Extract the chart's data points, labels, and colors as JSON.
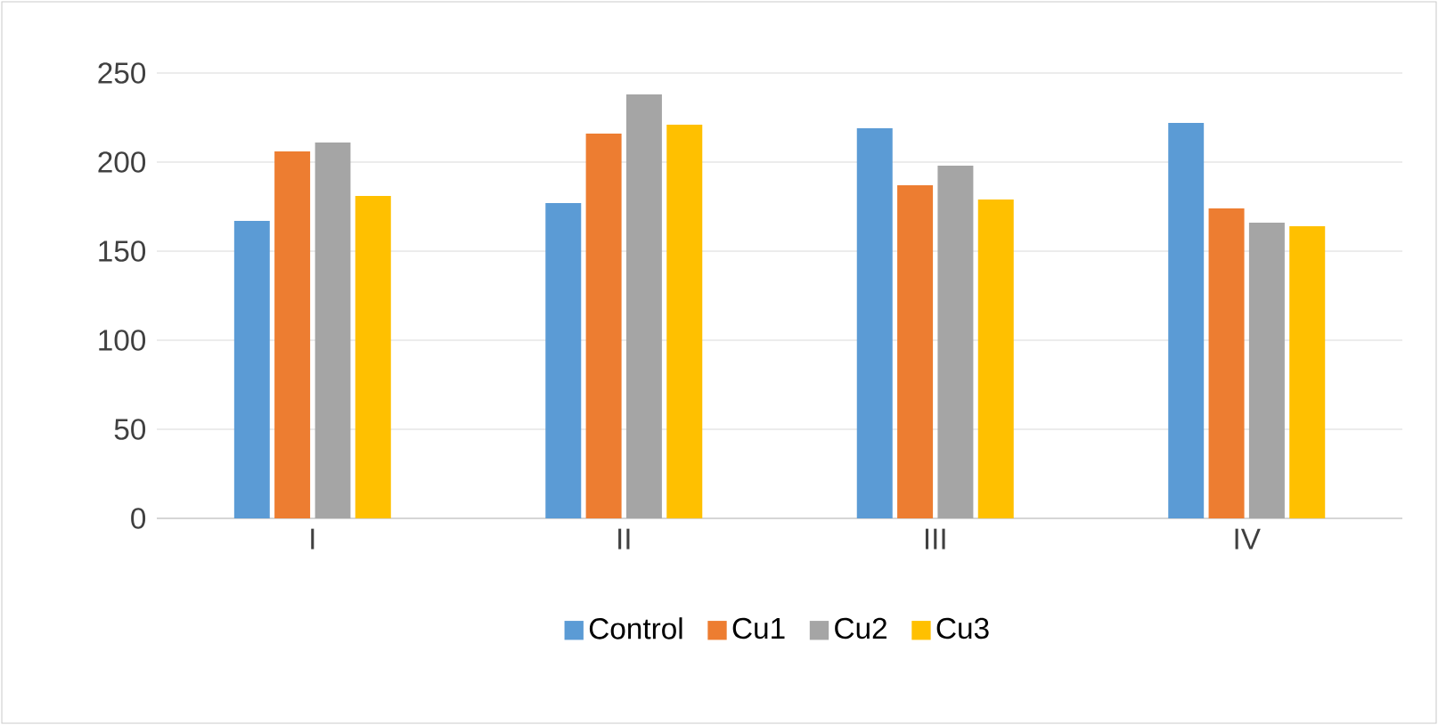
{
  "chart_data": {
    "type": "bar",
    "categories": [
      "I",
      "II",
      "III",
      "IV"
    ],
    "series": [
      {
        "name": "Control",
        "color": "#5b9bd5",
        "values": [
          167,
          177,
          219,
          222
        ]
      },
      {
        "name": "Cu1",
        "color": "#ed7d31",
        "values": [
          206,
          216,
          187,
          174
        ]
      },
      {
        "name": "Cu2",
        "color": "#a5a5a5",
        "values": [
          211,
          238,
          198,
          166
        ]
      },
      {
        "name": "Cu3",
        "color": "#ffc000",
        "values": [
          181,
          221,
          179,
          164
        ]
      }
    ],
    "ylim": [
      0,
      250
    ],
    "yticks": [
      0,
      50,
      100,
      150,
      200,
      250
    ],
    "grid": "y",
    "legend": "bottom"
  }
}
